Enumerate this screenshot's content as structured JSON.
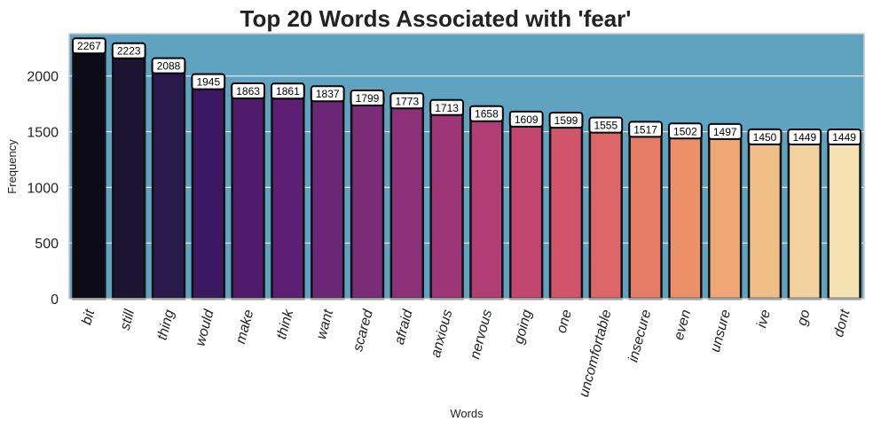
{
  "chart_data": {
    "type": "bar",
    "title": "Top 20 Words Associated with 'fear'",
    "xlabel": "Words",
    "ylabel": "Frequency",
    "categories": [
      "bit",
      "still",
      "thing",
      "would",
      "make",
      "think",
      "want",
      "scared",
      "afraid",
      "anxious",
      "nervous",
      "going",
      "one",
      "uncomfortable",
      "insecure",
      "even",
      "unsure",
      "ive",
      "go",
      "dont"
    ],
    "values": [
      2267,
      2223,
      2088,
      1945,
      1863,
      1861,
      1837,
      1799,
      1773,
      1713,
      1658,
      1609,
      1599,
      1555,
      1517,
      1502,
      1497,
      1450,
      1449,
      1449
    ],
    "ylim": [
      0,
      2380
    ],
    "yticks": [
      0,
      500,
      1000,
      1500,
      2000
    ],
    "grid": true,
    "data_labels": true,
    "colors": {
      "plot_background": "#5fa3c0",
      "bar_edge": "#111111",
      "palette": "magma",
      "bars": [
        "#0b0a16",
        "#1b1433",
        "#2a1a4c",
        "#3d1862",
        "#4f1a6c",
        "#5e1f72",
        "#6b2775",
        "#7b2b78",
        "#8b3079",
        "#9e3577",
        "#b03d74",
        "#c24670",
        "#d1546b",
        "#dd6768",
        "#e67b66",
        "#ec9069",
        "#efa775",
        "#f1be88",
        "#f3d19e",
        "#f4e2b2"
      ]
    }
  }
}
